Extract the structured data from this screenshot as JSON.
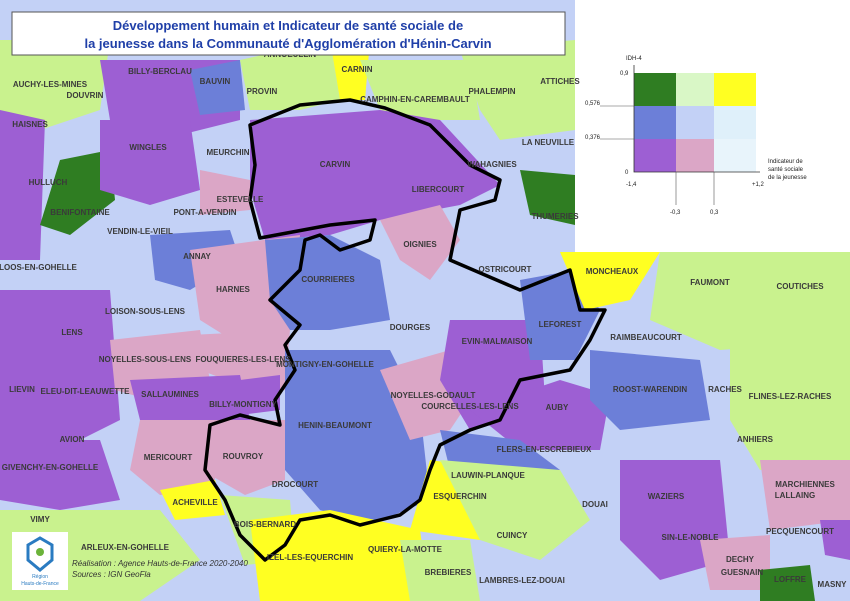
{
  "title": [
    "Développement humain  et Indicateur de santé sociale de",
    "la jeunesse dans la  Communauté d'Agglomération d'Hénin-Carvin"
  ],
  "communes": [
    "ANNOEULLIN",
    "BILLY-BERCLAU",
    "AUCHY-LES-MINES",
    "DOUVRIN",
    "BAUVIN",
    "PROVIN",
    "CARNIN",
    "CAMPHIN-EN-CAREMBAULT",
    "PHALEMPIN",
    "ATTICHES",
    "HAISNES",
    "WINGLES",
    "MEURCHIN",
    "LA NEUVILLE",
    "CARVIN",
    "WAHAGNIES",
    "HULLUCH",
    "ESTEVELLE",
    "LIBERCOURT",
    "BENIFONTAINE",
    "PONT-A-VENDIN",
    "THUMERIES",
    "VENDIN-LE-VIEIL",
    "OIGNIES",
    "ANNAY",
    "MONCHEAUX",
    "FAUMONT",
    "COUTICHES",
    "LOOS-EN-GOHELLE",
    "OSTRICOURT",
    "COURRIERES",
    "HARNES",
    "LEFOREST",
    "LOISON-SOUS-LENS",
    "RAIMBEAUCOURT",
    "LENS",
    "DOURGES",
    "EVIN-MALMAISON",
    "NOYELLES-SOUS-LENS",
    "FOUQUIERES-LES-LENS",
    "MONTIGNY-EN-GOHELLE",
    "ROOST-WARENDIN",
    "RACHES",
    "FLINES-LEZ-RACHES",
    "LIEVIN",
    "ELEU-DIT-LEAUWETTE",
    "SALLAUMINES",
    "NOYELLES-GODAULT",
    "BILLY-MONTIGNY",
    "COURCELLES-LES-LENS",
    "AUBY",
    "HENIN-BEAUMONT",
    "AVION",
    "ANHIERS",
    "FLERS-EN-ESCREBIEUX",
    "ROUVROY",
    "MERICOURT",
    "GIVENCHY-EN-GOHELLE",
    "LAUWIN-PLANQUE",
    "MARCHIENNES",
    "DROCOURT",
    "LALLAING",
    "ESQUERCHIN",
    "WAZIERS",
    "DOUAI",
    "ACHEVILLE",
    "VIMY",
    "BOIS-BERNARD",
    "PECQUENCOURT",
    "CUINCY",
    "SIN-LE-NOBLE",
    "DECHY",
    "ARLEUX-EN-GOHELLE",
    "IZEL-LES-EQUERCHIN",
    "QUIERY-LA-MOTTE",
    "GUESNAIN",
    "BREBIERES",
    "LAMBRES-LEZ-DOUAI",
    "LOFFRE",
    "MASNY"
  ],
  "legend": {
    "y_title": "IDH-4",
    "y_labels": [
      "0,9",
      "0,576",
      "0,376",
      "0"
    ],
    "x_labels": [
      "-1,4",
      "-0,3",
      "0,3",
      "+1,2"
    ],
    "x_title": [
      "Indicateur de",
      "santé sociale",
      "de la jeunesse"
    ]
  },
  "credits": [
    "Réalisation : Agence Hauts-de-France 2020-2040",
    "Sources : IGN GeoFla"
  ],
  "logo": [
    "Région",
    "Hauts-de-France"
  ]
}
